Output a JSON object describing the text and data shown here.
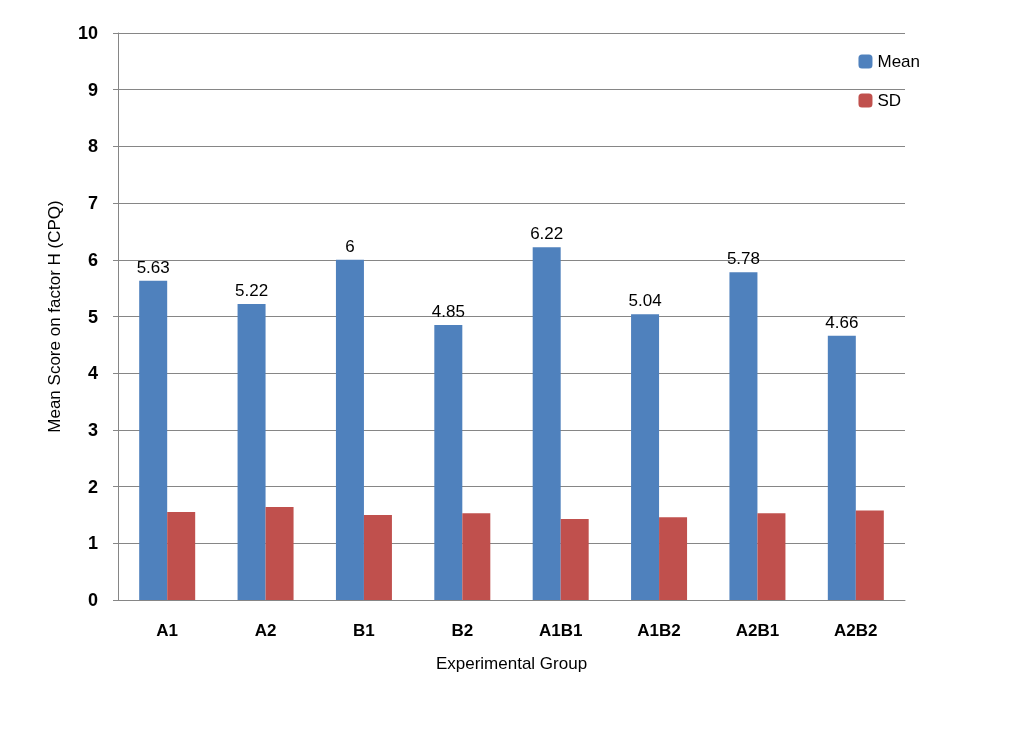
{
  "chart_data": {
    "type": "bar",
    "xlabel": "Experimental Group",
    "ylabel": "Mean Score on factor H (CPQ)",
    "categories": [
      "A1",
      "A2",
      "B1",
      "B2",
      "A1B1",
      "A1B2",
      "A2B1",
      "A2B2"
    ],
    "series": [
      {
        "name": "Mean",
        "color": "#4f81bd",
        "values": [
          5.63,
          5.22,
          6,
          4.85,
          6.22,
          5.04,
          5.78,
          4.66
        ],
        "value_labels": [
          "5.63",
          "5.22",
          "6",
          "4.85",
          "6.22",
          "5.04",
          "5.78",
          "4.66"
        ]
      },
      {
        "name": "SD",
        "color": "#c0504d",
        "values": [
          1.55,
          1.64,
          1.5,
          1.53,
          1.43,
          1.46,
          1.53,
          1.58
        ]
      }
    ],
    "ylim": [
      0,
      10
    ],
    "yticks": [
      0,
      1,
      2,
      3,
      4,
      5,
      6,
      7,
      8,
      9,
      10
    ],
    "grid": "y",
    "legend": "top right"
  }
}
